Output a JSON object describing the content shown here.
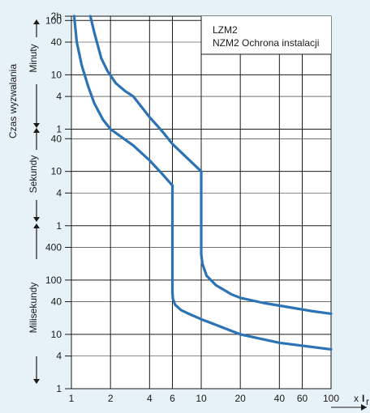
{
  "chart_data": {
    "type": "line",
    "title": "",
    "legend": [
      "LZM2",
      "NZM2 Ochrona instalacji"
    ],
    "x_axis": {
      "scale": "log",
      "range": [
        1,
        100
      ],
      "tick_labels": [
        "1",
        "2",
        "4",
        "6",
        "10",
        "20",
        "40",
        "60",
        "100"
      ],
      "unit_label_prefix": "x",
      "unit_label_letter": "I",
      "unit_label_sub": "r"
    },
    "y_axis": {
      "label": "Czas wyzwalania",
      "scale": "log",
      "range_seconds": [
        0.001,
        7200
      ],
      "tick_labels_top_to_bottom": [
        "2h",
        "100",
        "40",
        "10",
        "4",
        "1",
        "40",
        "10",
        "4",
        "1",
        "400",
        "100",
        "40",
        "10",
        "4",
        "1"
      ],
      "bands": [
        {
          "label": "Minuty"
        },
        {
          "label": "Sekundy"
        },
        {
          "label": "Milisekundy"
        }
      ]
    },
    "series": [
      {
        "color": "#2b73b5",
        "points": [
          [
            1.05,
            7200
          ],
          [
            1.1,
            2400
          ],
          [
            1.2,
            900
          ],
          [
            1.35,
            360
          ],
          [
            1.5,
            180
          ],
          [
            1.75,
            90
          ],
          [
            2,
            60
          ],
          [
            3,
            30
          ],
          [
            4,
            16
          ],
          [
            5,
            9
          ],
          [
            6,
            5.5
          ],
          [
            6,
            0.06
          ],
          [
            6.05,
            0.045
          ],
          [
            6.3,
            0.035
          ],
          [
            7,
            0.028
          ],
          [
            8,
            0.024
          ],
          [
            10,
            0.019
          ],
          [
            20,
            0.01
          ],
          [
            40,
            0.007
          ],
          [
            100,
            0.0053
          ]
        ]
      },
      {
        "color": "#2b73b5",
        "points": [
          [
            1.4,
            7200
          ],
          [
            1.5,
            3600
          ],
          [
            1.7,
            1200
          ],
          [
            1.9,
            700
          ],
          [
            2.2,
            420
          ],
          [
            2.6,
            300
          ],
          [
            3,
            240
          ],
          [
            4,
            100
          ],
          [
            5,
            55
          ],
          [
            6,
            32
          ],
          [
            10,
            10
          ],
          [
            10,
            0.3
          ],
          [
            10.2,
            0.2
          ],
          [
            11,
            0.12
          ],
          [
            13,
            0.08
          ],
          [
            17,
            0.055
          ],
          [
            20,
            0.047
          ],
          [
            30,
            0.038
          ],
          [
            50,
            0.031
          ],
          [
            70,
            0.027
          ],
          [
            100,
            0.024
          ]
        ]
      }
    ]
  }
}
